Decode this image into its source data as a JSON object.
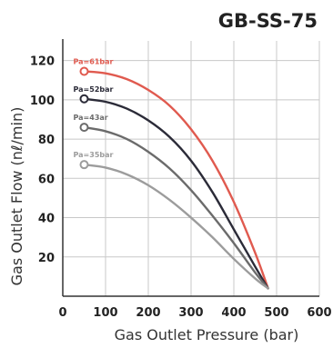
{
  "chart_data": {
    "type": "line",
    "title": "GB-SS-75",
    "xlabel": "Gas Outlet Pressure (bar)",
    "ylabel": "Gas Outlet Flow (nℓ/min)",
    "xlim": [
      0,
      600
    ],
    "ylim": [
      0,
      130
    ],
    "xticks": [
      "0",
      "100",
      "200",
      "300",
      "400",
      "500",
      "600"
    ],
    "yticks": [
      "20",
      "40",
      "60",
      "80",
      "100",
      "120"
    ],
    "grid": true,
    "series": [
      {
        "name": "Pa=61bar",
        "color": "#e05a4f",
        "x": [
          50,
          100,
          150,
          200,
          250,
          300,
          350,
          400,
          450,
          480
        ],
        "y": [
          114.5,
          113.5,
          110.5,
          105,
          97,
          85,
          69,
          48,
          22,
          4
        ]
      },
      {
        "name": "Pa=52bar",
        "color": "#2b2b38",
        "x": [
          50,
          100,
          150,
          200,
          250,
          300,
          350,
          400,
          450,
          480
        ],
        "y": [
          100.5,
          99,
          95.5,
          89.5,
          81,
          69,
          53,
          34,
          15,
          4
        ]
      },
      {
        "name": "Pa=43ar",
        "color": "#6b6b6b",
        "x": [
          50,
          100,
          150,
          200,
          250,
          300,
          350,
          400,
          450,
          480
        ],
        "y": [
          86,
          84,
          80,
          73.5,
          65,
          54,
          41,
          27,
          12,
          4
        ]
      },
      {
        "name": "Pa=35bar",
        "color": "#9c9c9c",
        "x": [
          50,
          100,
          150,
          200,
          250,
          300,
          350,
          400,
          450,
          480
        ],
        "y": [
          67,
          65.5,
          62,
          56.5,
          49,
          40,
          30,
          19,
          9,
          4
        ]
      }
    ]
  }
}
